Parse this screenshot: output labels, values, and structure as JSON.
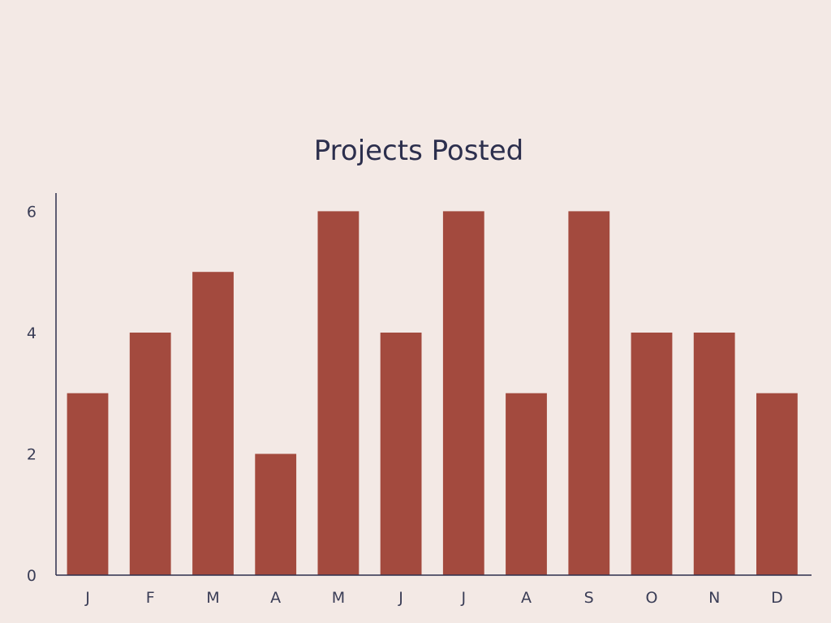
{
  "chart_data": {
    "type": "bar",
    "title": "Projects Posted",
    "xlabel": "",
    "ylabel": "",
    "categories": [
      "J",
      "F",
      "M",
      "A",
      "M",
      "J",
      "J",
      "A",
      "S",
      "O",
      "N",
      "D"
    ],
    "values": [
      3,
      4,
      5,
      2,
      6,
      4,
      6,
      3,
      6,
      4,
      4,
      3
    ],
    "ylim": [
      0,
      6.3
    ],
    "yticks": [
      0,
      2,
      4,
      6
    ],
    "grid": false,
    "legend": "none",
    "colors": {
      "bar": "#a34a3e",
      "axis": "#2c2f4d",
      "background": "#f3e9e5"
    }
  }
}
